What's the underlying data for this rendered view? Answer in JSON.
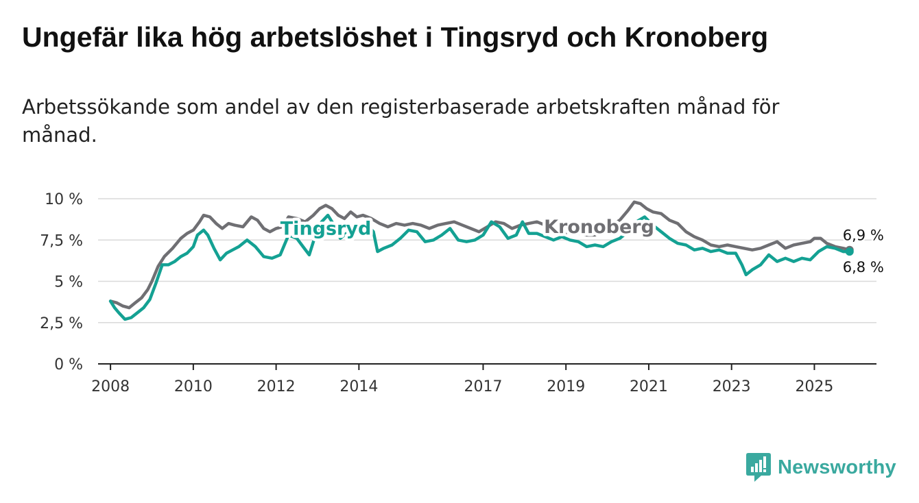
{
  "title": "Ungefär lika hög arbetslöshet i Tingsryd och Kronoberg",
  "subtitle": "Arbetssökande som andel av den registerbaserade arbetskraften månad för månad.",
  "brand": {
    "name": "Newsworthy",
    "color": "#3aa99f"
  },
  "chart_data": {
    "type": "line",
    "title": "Ungefär lika hög arbetslöshet i Tingsryd och Kronoberg",
    "xlabel": "",
    "ylabel": "",
    "xlim": [
      2007.7,
      2026.5
    ],
    "ylim": [
      0,
      10
    ],
    "y_ticks": [
      {
        "value": 0,
        "label": "0 %"
      },
      {
        "value": 2.5,
        "label": "2,5 %"
      },
      {
        "value": 5,
        "label": "5 %"
      },
      {
        "value": 7.5,
        "label": "7,5 %"
      },
      {
        "value": 10,
        "label": "10 %"
      }
    ],
    "x_ticks": [
      {
        "value": 2008,
        "label": "2008"
      },
      {
        "value": 2010,
        "label": "2010"
      },
      {
        "value": 2012,
        "label": "2012"
      },
      {
        "value": 2014,
        "label": "2014"
      },
      {
        "value": 2017,
        "label": "2017"
      },
      {
        "value": 2019,
        "label": "2019"
      },
      {
        "value": 2021,
        "label": "2021"
      },
      {
        "value": 2023,
        "label": "2023"
      },
      {
        "value": 2025,
        "label": "2025"
      }
    ],
    "series": [
      {
        "name": "Kronoberg",
        "color": "#6f6f73",
        "label_at": [
          2019.8,
          8.3
        ],
        "end_label": "6,9 %",
        "points": [
          [
            2008.0,
            3.8
          ],
          [
            2008.15,
            3.7
          ],
          [
            2008.3,
            3.5
          ],
          [
            2008.45,
            3.4
          ],
          [
            2008.6,
            3.7
          ],
          [
            2008.75,
            4.0
          ],
          [
            2008.9,
            4.5
          ],
          [
            2009.0,
            5.0
          ],
          [
            2009.15,
            5.9
          ],
          [
            2009.3,
            6.5
          ],
          [
            2009.5,
            7.0
          ],
          [
            2009.7,
            7.6
          ],
          [
            2009.85,
            7.9
          ],
          [
            2010.0,
            8.1
          ],
          [
            2010.15,
            8.6
          ],
          [
            2010.25,
            9.0
          ],
          [
            2010.4,
            8.9
          ],
          [
            2010.55,
            8.5
          ],
          [
            2010.7,
            8.2
          ],
          [
            2010.85,
            8.5
          ],
          [
            2011.0,
            8.4
          ],
          [
            2011.2,
            8.3
          ],
          [
            2011.4,
            8.9
          ],
          [
            2011.55,
            8.7
          ],
          [
            2011.7,
            8.2
          ],
          [
            2011.85,
            8.0
          ],
          [
            2012.0,
            8.2
          ],
          [
            2012.15,
            8.3
          ],
          [
            2012.3,
            8.9
          ],
          [
            2012.5,
            8.8
          ],
          [
            2012.7,
            8.6
          ],
          [
            2012.9,
            9.0
          ],
          [
            2013.05,
            9.4
          ],
          [
            2013.2,
            9.6
          ],
          [
            2013.35,
            9.4
          ],
          [
            2013.5,
            9.0
          ],
          [
            2013.65,
            8.8
          ],
          [
            2013.8,
            9.2
          ],
          [
            2013.95,
            8.9
          ],
          [
            2014.1,
            9.0
          ],
          [
            2014.3,
            8.8
          ],
          [
            2014.5,
            8.5
          ],
          [
            2014.7,
            8.3
          ],
          [
            2014.9,
            8.5
          ],
          [
            2015.1,
            8.4
          ],
          [
            2015.3,
            8.5
          ],
          [
            2015.5,
            8.4
          ],
          [
            2015.7,
            8.2
          ],
          [
            2015.9,
            8.4
          ],
          [
            2016.1,
            8.5
          ],
          [
            2016.3,
            8.6
          ],
          [
            2016.5,
            8.4
          ],
          [
            2016.7,
            8.2
          ],
          [
            2016.9,
            8.0
          ],
          [
            2017.1,
            8.3
          ],
          [
            2017.3,
            8.6
          ],
          [
            2017.5,
            8.5
          ],
          [
            2017.7,
            8.2
          ],
          [
            2017.9,
            8.4
          ],
          [
            2018.1,
            8.5
          ],
          [
            2018.3,
            8.6
          ],
          [
            2018.5,
            8.4
          ],
          [
            2018.7,
            8.1
          ],
          [
            2018.9,
            7.9
          ],
          [
            2019.1,
            8.0
          ],
          [
            2019.3,
            7.9
          ],
          [
            2019.5,
            7.8
          ],
          [
            2019.7,
            7.8
          ],
          [
            2019.9,
            8.2
          ],
          [
            2020.1,
            8.4
          ],
          [
            2020.3,
            8.7
          ],
          [
            2020.5,
            9.3
          ],
          [
            2020.65,
            9.8
          ],
          [
            2020.8,
            9.7
          ],
          [
            2020.95,
            9.4
          ],
          [
            2021.1,
            9.2
          ],
          [
            2021.3,
            9.1
          ],
          [
            2021.5,
            8.7
          ],
          [
            2021.7,
            8.5
          ],
          [
            2021.9,
            8.0
          ],
          [
            2022.1,
            7.7
          ],
          [
            2022.3,
            7.5
          ],
          [
            2022.5,
            7.2
          ],
          [
            2022.7,
            7.1
          ],
          [
            2022.9,
            7.2
          ],
          [
            2023.1,
            7.1
          ],
          [
            2023.3,
            7.0
          ],
          [
            2023.5,
            6.9
          ],
          [
            2023.7,
            7.0
          ],
          [
            2023.9,
            7.2
          ],
          [
            2024.1,
            7.4
          ],
          [
            2024.3,
            7.0
          ],
          [
            2024.5,
            7.2
          ],
          [
            2024.7,
            7.3
          ],
          [
            2024.9,
            7.4
          ],
          [
            2025.0,
            7.6
          ],
          [
            2025.15,
            7.6
          ],
          [
            2025.3,
            7.3
          ],
          [
            2025.5,
            7.1
          ],
          [
            2025.7,
            7.0
          ],
          [
            2025.85,
            6.9
          ]
        ]
      },
      {
        "name": "Tingsryd",
        "color": "#14a193",
        "label_at": [
          2013.2,
          8.2
        ],
        "end_label": "6,8 %",
        "points": [
          [
            2008.0,
            3.8
          ],
          [
            2008.1,
            3.4
          ],
          [
            2008.2,
            3.1
          ],
          [
            2008.35,
            2.7
          ],
          [
            2008.5,
            2.8
          ],
          [
            2008.65,
            3.1
          ],
          [
            2008.8,
            3.4
          ],
          [
            2008.95,
            3.9
          ],
          [
            2009.1,
            4.9
          ],
          [
            2009.25,
            6.0
          ],
          [
            2009.4,
            6.0
          ],
          [
            2009.55,
            6.2
          ],
          [
            2009.7,
            6.5
          ],
          [
            2009.85,
            6.7
          ],
          [
            2010.0,
            7.1
          ],
          [
            2010.1,
            7.8
          ],
          [
            2010.25,
            8.1
          ],
          [
            2010.35,
            7.8
          ],
          [
            2010.5,
            7.0
          ],
          [
            2010.65,
            6.3
          ],
          [
            2010.8,
            6.7
          ],
          [
            2010.95,
            6.9
          ],
          [
            2011.1,
            7.1
          ],
          [
            2011.3,
            7.5
          ],
          [
            2011.5,
            7.1
          ],
          [
            2011.7,
            6.5
          ],
          [
            2011.9,
            6.4
          ],
          [
            2012.1,
            6.6
          ],
          [
            2012.3,
            7.8
          ],
          [
            2012.5,
            7.6
          ],
          [
            2012.65,
            7.1
          ],
          [
            2012.8,
            6.6
          ],
          [
            2012.95,
            7.8
          ],
          [
            2013.1,
            8.6
          ],
          [
            2013.25,
            9.0
          ],
          [
            2013.4,
            8.4
          ],
          [
            2013.55,
            7.6
          ],
          [
            2013.7,
            7.9
          ],
          [
            2013.85,
            8.3
          ],
          [
            2014.0,
            8.1
          ],
          [
            2014.2,
            8.4
          ],
          [
            2014.35,
            8.0
          ],
          [
            2014.45,
            6.8
          ],
          [
            2014.6,
            7.0
          ],
          [
            2014.8,
            7.2
          ],
          [
            2015.0,
            7.6
          ],
          [
            2015.2,
            8.1
          ],
          [
            2015.4,
            8.0
          ],
          [
            2015.6,
            7.4
          ],
          [
            2015.8,
            7.5
          ],
          [
            2016.0,
            7.8
          ],
          [
            2016.2,
            8.2
          ],
          [
            2016.4,
            7.5
          ],
          [
            2016.6,
            7.4
          ],
          [
            2016.8,
            7.5
          ],
          [
            2017.0,
            7.8
          ],
          [
            2017.2,
            8.6
          ],
          [
            2017.4,
            8.3
          ],
          [
            2017.6,
            7.6
          ],
          [
            2017.8,
            7.8
          ],
          [
            2017.95,
            8.6
          ],
          [
            2018.1,
            7.9
          ],
          [
            2018.3,
            7.9
          ],
          [
            2018.5,
            7.7
          ],
          [
            2018.7,
            7.5
          ],
          [
            2018.9,
            7.7
          ],
          [
            2019.1,
            7.5
          ],
          [
            2019.3,
            7.4
          ],
          [
            2019.5,
            7.1
          ],
          [
            2019.7,
            7.2
          ],
          [
            2019.9,
            7.1
          ],
          [
            2020.1,
            7.4
          ],
          [
            2020.3,
            7.6
          ],
          [
            2020.5,
            8.0
          ],
          [
            2020.7,
            8.6
          ],
          [
            2020.9,
            8.9
          ],
          [
            2021.1,
            8.4
          ],
          [
            2021.3,
            8.0
          ],
          [
            2021.5,
            7.6
          ],
          [
            2021.7,
            7.3
          ],
          [
            2021.9,
            7.2
          ],
          [
            2022.1,
            6.9
          ],
          [
            2022.3,
            7.0
          ],
          [
            2022.5,
            6.8
          ],
          [
            2022.7,
            6.9
          ],
          [
            2022.9,
            6.7
          ],
          [
            2023.1,
            6.7
          ],
          [
            2023.25,
            6.0
          ],
          [
            2023.35,
            5.4
          ],
          [
            2023.5,
            5.7
          ],
          [
            2023.7,
            6.0
          ],
          [
            2023.9,
            6.6
          ],
          [
            2024.1,
            6.2
          ],
          [
            2024.3,
            6.4
          ],
          [
            2024.5,
            6.2
          ],
          [
            2024.7,
            6.4
          ],
          [
            2024.9,
            6.3
          ],
          [
            2025.1,
            6.8
          ],
          [
            2025.3,
            7.1
          ],
          [
            2025.5,
            7.0
          ],
          [
            2025.7,
            6.8
          ],
          [
            2025.85,
            6.8
          ]
        ]
      }
    ]
  }
}
